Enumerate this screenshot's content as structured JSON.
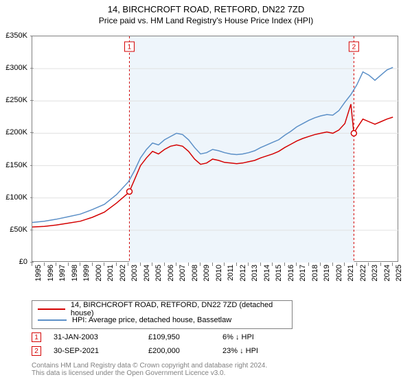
{
  "title": "14, BIRCHCROFT ROAD, RETFORD, DN22 7ZD",
  "subtitle": "Price paid vs. HM Land Registry's House Price Index (HPI)",
  "chart": {
    "type": "line",
    "background_color": "#ffffff",
    "grid_color": "#e0e0e0",
    "axis_color": "#808080",
    "x_years": [
      1995,
      1996,
      1997,
      1998,
      1999,
      2000,
      2001,
      2002,
      2003,
      2004,
      2005,
      2006,
      2007,
      2008,
      2009,
      2010,
      2011,
      2012,
      2013,
      2014,
      2015,
      2016,
      2017,
      2018,
      2019,
      2020,
      2021,
      2022,
      2023,
      2024,
      2025
    ],
    "y_ticks": [
      0,
      50000,
      100000,
      150000,
      200000,
      250000,
      300000,
      350000
    ],
    "y_tick_labels": [
      "£0",
      "£50K",
      "£100K",
      "£150K",
      "£200K",
      "£250K",
      "£300K",
      "£350K"
    ],
    "ylim": [
      0,
      350000
    ],
    "xlim": [
      1995,
      2025.5
    ],
    "label_fontsize": 11,
    "shade_start": 2003.08,
    "shade_end": 2021.75,
    "series": [
      {
        "id": "price_paid",
        "label": "14, BIRCHCROFT ROAD, RETFORD, DN22 7ZD (detached house)",
        "color": "#d40000",
        "line_width": 1.5,
        "points": [
          [
            1995,
            55000
          ],
          [
            1996,
            56000
          ],
          [
            1997,
            58000
          ],
          [
            1998,
            61000
          ],
          [
            1999,
            64000
          ],
          [
            2000,
            70000
          ],
          [
            2001,
            78000
          ],
          [
            2002,
            92000
          ],
          [
            2003,
            108000
          ],
          [
            2003.08,
            109950
          ],
          [
            2003.5,
            128000
          ],
          [
            2004,
            150000
          ],
          [
            2004.5,
            162000
          ],
          [
            2005,
            172000
          ],
          [
            2005.5,
            168000
          ],
          [
            2006,
            175000
          ],
          [
            2006.5,
            180000
          ],
          [
            2007,
            182000
          ],
          [
            2007.5,
            180000
          ],
          [
            2008,
            172000
          ],
          [
            2008.5,
            160000
          ],
          [
            2009,
            152000
          ],
          [
            2009.5,
            154000
          ],
          [
            2010,
            160000
          ],
          [
            2010.5,
            158000
          ],
          [
            2011,
            155000
          ],
          [
            2011.5,
            154000
          ],
          [
            2012,
            153000
          ],
          [
            2012.5,
            154000
          ],
          [
            2013,
            156000
          ],
          [
            2013.5,
            158000
          ],
          [
            2014,
            162000
          ],
          [
            2014.5,
            165000
          ],
          [
            2015,
            168000
          ],
          [
            2015.5,
            172000
          ],
          [
            2016,
            178000
          ],
          [
            2016.5,
            183000
          ],
          [
            2017,
            188000
          ],
          [
            2017.5,
            192000
          ],
          [
            2018,
            195000
          ],
          [
            2018.5,
            198000
          ],
          [
            2019,
            200000
          ],
          [
            2019.5,
            202000
          ],
          [
            2020,
            200000
          ],
          [
            2020.5,
            205000
          ],
          [
            2021,
            215000
          ],
          [
            2021.5,
            245000
          ],
          [
            2021.75,
            200000
          ],
          [
            2022,
            208000
          ],
          [
            2022.5,
            222000
          ],
          [
            2023,
            218000
          ],
          [
            2023.5,
            214000
          ],
          [
            2024,
            218000
          ],
          [
            2024.5,
            222000
          ],
          [
            2025,
            225000
          ]
        ]
      },
      {
        "id": "hpi",
        "label": "HPI: Average price, detached house, Bassetlaw",
        "color": "#5b8fc7",
        "line_width": 1.5,
        "points": [
          [
            1995,
            62000
          ],
          [
            1996,
            64000
          ],
          [
            1997,
            67000
          ],
          [
            1998,
            71000
          ],
          [
            1999,
            75000
          ],
          [
            2000,
            82000
          ],
          [
            2001,
            90000
          ],
          [
            2002,
            105000
          ],
          [
            2003,
            125000
          ],
          [
            2003.5,
            142000
          ],
          [
            2004,
            162000
          ],
          [
            2004.5,
            175000
          ],
          [
            2005,
            185000
          ],
          [
            2005.5,
            182000
          ],
          [
            2006,
            190000
          ],
          [
            2006.5,
            195000
          ],
          [
            2007,
            200000
          ],
          [
            2007.5,
            198000
          ],
          [
            2008,
            190000
          ],
          [
            2008.5,
            178000
          ],
          [
            2009,
            168000
          ],
          [
            2009.5,
            170000
          ],
          [
            2010,
            175000
          ],
          [
            2010.5,
            173000
          ],
          [
            2011,
            170000
          ],
          [
            2011.5,
            168000
          ],
          [
            2012,
            167000
          ],
          [
            2012.5,
            168000
          ],
          [
            2013,
            170000
          ],
          [
            2013.5,
            173000
          ],
          [
            2014,
            178000
          ],
          [
            2014.5,
            182000
          ],
          [
            2015,
            186000
          ],
          [
            2015.5,
            190000
          ],
          [
            2016,
            197000
          ],
          [
            2016.5,
            203000
          ],
          [
            2017,
            210000
          ],
          [
            2017.5,
            215000
          ],
          [
            2018,
            220000
          ],
          [
            2018.5,
            224000
          ],
          [
            2019,
            227000
          ],
          [
            2019.5,
            229000
          ],
          [
            2020,
            228000
          ],
          [
            2020.5,
            235000
          ],
          [
            2021,
            248000
          ],
          [
            2021.5,
            260000
          ],
          [
            2022,
            275000
          ],
          [
            2022.5,
            295000
          ],
          [
            2023,
            290000
          ],
          [
            2023.5,
            282000
          ],
          [
            2024,
            290000
          ],
          [
            2024.5,
            298000
          ],
          [
            2025,
            302000
          ]
        ]
      }
    ],
    "events": [
      {
        "n": "1",
        "year": 2003.08,
        "price": 109950,
        "date": "31-JAN-2003",
        "price_label": "£109,950",
        "diff_label": "6% ↓ HPI",
        "color": "#d40000"
      },
      {
        "n": "2",
        "year": 2021.75,
        "price": 200000,
        "date": "30-SEP-2021",
        "price_label": "£200,000",
        "diff_label": "23% ↓ HPI",
        "color": "#d40000"
      }
    ]
  },
  "legend": {
    "border_color": "#808080",
    "fontsize": 11
  },
  "footer_line1": "Contains HM Land Registry data © Crown copyright and database right 2024.",
  "footer_line2": "This data is licensed under the Open Government Licence v3.0."
}
